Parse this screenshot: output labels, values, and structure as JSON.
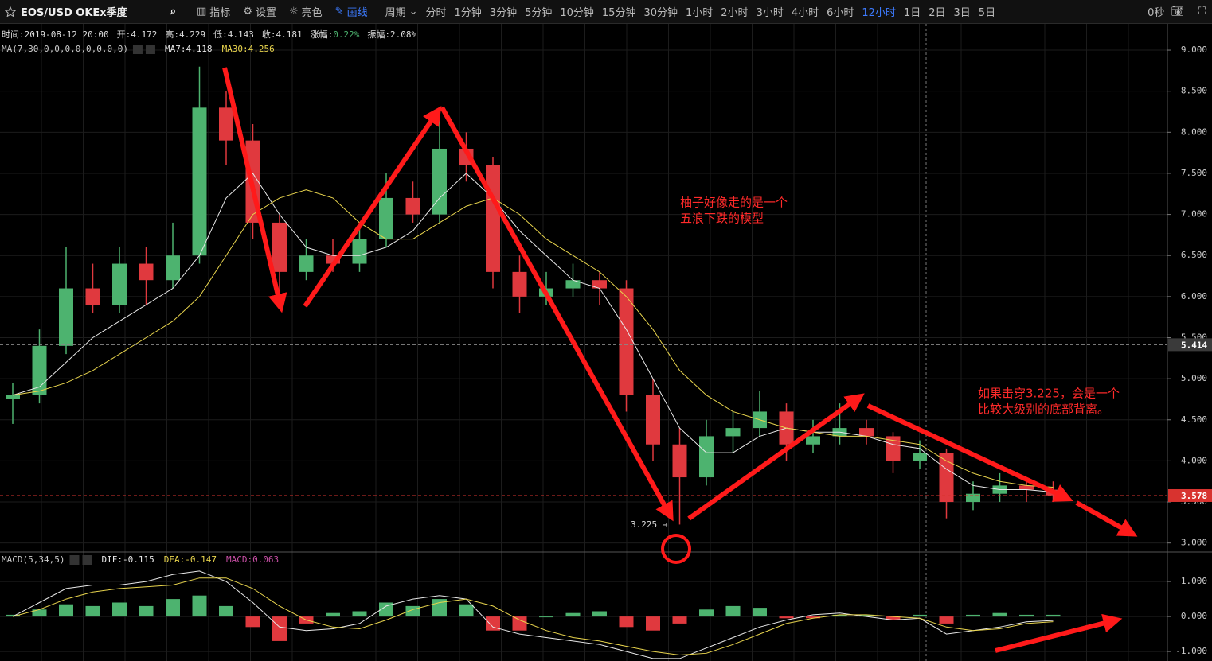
{
  "toolbar": {
    "symbol": "EOS/USD OKEx季度",
    "tools": [
      "指标",
      "设置",
      "亮色",
      "画线"
    ],
    "period": "周期",
    "intervals": [
      "分时",
      "1分钟",
      "3分钟",
      "5分钟",
      "10分钟",
      "15分钟",
      "30分钟",
      "1小时",
      "2小时",
      "3小时",
      "4小时",
      "6小时",
      "12小时",
      "1日",
      "2日",
      "3日",
      "5日"
    ],
    "timer": "0秒"
  },
  "chart_data": [
    {
      "type": "candlestick",
      "info": [
        "时间:2019-08-12 20:00",
        "开:4.172",
        "高:4.229",
        "低:4.143",
        "收:4.181"
      ],
      "change_label": "涨幅:",
      "change": "0.22%",
      "amplitude": "振幅:2.08%",
      "indicator": "MA(7,30,0,0,0,0,0,0,0,0)",
      "up_color": "#4db36f",
      "down_color": "#e0393e",
      "open": [
        4.75,
        4.8,
        5.4,
        6.1,
        5.9,
        6.4,
        6.2,
        6.5,
        8.3,
        7.9,
        6.9,
        6.3,
        6.5,
        6.4,
        6.7,
        7.2,
        7.0,
        7.8,
        7.6,
        6.3,
        6.0,
        6.1,
        6.2,
        6.1,
        4.8,
        4.2,
        3.8,
        4.3,
        4.4,
        4.6,
        4.2,
        4.3,
        4.4,
        4.3,
        4.0,
        4.1,
        3.5,
        3.6,
        3.7,
        3.65
      ],
      "high": [
        4.95,
        5.6,
        6.6,
        6.4,
        6.6,
        6.6,
        6.9,
        8.8,
        8.5,
        8.1,
        7.0,
        6.7,
        6.7,
        6.9,
        7.5,
        7.4,
        8.3,
        8.0,
        7.7,
        6.5,
        6.3,
        6.4,
        6.3,
        6.2,
        5.0,
        4.4,
        4.5,
        4.6,
        4.85,
        4.7,
        4.5,
        4.7,
        4.5,
        4.35,
        4.25,
        4.15,
        3.75,
        3.85,
        3.8,
        3.75
      ],
      "low": [
        4.45,
        4.7,
        5.3,
        5.8,
        5.8,
        5.9,
        6.1,
        6.4,
        7.6,
        6.7,
        6.0,
        6.2,
        6.3,
        6.3,
        6.6,
        6.9,
        6.9,
        7.4,
        6.1,
        5.8,
        5.9,
        6.0,
        5.9,
        4.6,
        4.0,
        3.225,
        3.7,
        4.1,
        4.3,
        4.0,
        4.1,
        4.2,
        4.2,
        3.85,
        3.9,
        3.3,
        3.4,
        3.5,
        3.5,
        3.5
      ],
      "close": [
        4.8,
        5.4,
        6.1,
        5.9,
        6.4,
        6.2,
        6.5,
        8.3,
        7.9,
        6.9,
        6.3,
        6.5,
        6.4,
        6.7,
        7.2,
        7.0,
        7.8,
        7.6,
        6.3,
        6.0,
        6.1,
        6.2,
        6.1,
        4.8,
        4.2,
        3.8,
        4.3,
        4.4,
        4.6,
        4.2,
        4.3,
        4.4,
        4.3,
        4.0,
        4.1,
        3.5,
        3.6,
        3.7,
        3.65,
        3.58
      ],
      "series": [
        {
          "name": "MA7:4.118",
          "color": "#e8e8e8",
          "values": [
            4.8,
            4.9,
            5.2,
            5.5,
            5.7,
            5.9,
            6.1,
            6.5,
            7.2,
            7.5,
            7.0,
            6.6,
            6.5,
            6.5,
            6.6,
            6.8,
            7.2,
            7.5,
            7.2,
            6.8,
            6.5,
            6.2,
            6.1,
            5.6,
            5.0,
            4.4,
            4.1,
            4.1,
            4.3,
            4.4,
            4.35,
            4.35,
            4.3,
            4.2,
            4.15,
            3.9,
            3.7,
            3.65,
            3.65,
            3.62
          ]
        },
        {
          "name": "MA30:4.256",
          "color": "#e8d44d",
          "values": [
            4.8,
            4.85,
            4.95,
            5.1,
            5.3,
            5.5,
            5.7,
            6.0,
            6.5,
            7.0,
            7.2,
            7.3,
            7.2,
            6.9,
            6.7,
            6.7,
            6.9,
            7.1,
            7.2,
            7.0,
            6.7,
            6.5,
            6.3,
            6.0,
            5.6,
            5.1,
            4.8,
            4.6,
            4.5,
            4.4,
            4.35,
            4.3,
            4.3,
            4.25,
            4.2,
            4.0,
            3.85,
            3.75,
            3.7,
            3.68
          ]
        }
      ],
      "ylim": [
        2.9,
        9.32
      ],
      "yticks": [
        {
          "value": 3,
          "label": "3.000"
        },
        {
          "value": 3.5,
          "label": "3.500"
        },
        {
          "value": 4,
          "label": "4.000"
        },
        {
          "value": 4.5,
          "label": "4.500"
        },
        {
          "value": 5,
          "label": "5.000"
        },
        {
          "value": 5.5,
          "label": "5.500"
        },
        {
          "value": 6,
          "label": "6.000"
        },
        {
          "value": 6.5,
          "label": "6.500"
        },
        {
          "value": 7,
          "label": "7.000"
        },
        {
          "value": 7.5,
          "label": "7.500"
        },
        {
          "value": 8,
          "label": "8.000"
        },
        {
          "value": 8.5,
          "label": "8.500"
        },
        {
          "value": 9,
          "label": "9.000"
        }
      ],
      "price_lines": [
        {
          "value": 5.414,
          "label": "5.414",
          "color": "#3a3a3a"
        },
        {
          "value": 3.578,
          "label": "3.578",
          "color": "#d8332f"
        }
      ],
      "low_label": "3.225 →",
      "annotations": [
        "柚子好像走的是一个",
        "五浪下跌的模型",
        "如果击穿3.225，会是一个",
        "比较大级别的底部背离。"
      ]
    },
    {
      "type": "macd",
      "indicator": "MACD(5,34,5)",
      "up_color": "#4db36f",
      "down_color": "#e0393e",
      "values": [
        0.05,
        0.2,
        0.35,
        0.3,
        0.4,
        0.3,
        0.5,
        0.6,
        0.3,
        -0.3,
        -0.7,
        -0.2,
        0.1,
        0.15,
        0.4,
        0.3,
        0.5,
        0.35,
        -0.4,
        -0.4,
        0.0,
        0.1,
        0.15,
        -0.3,
        -0.4,
        -0.2,
        0.2,
        0.3,
        0.25,
        -0.05,
        -0.05,
        0.05,
        0.05,
        -0.1,
        0.05,
        -0.2,
        0.05,
        0.1,
        0.05,
        0.05
      ],
      "value_name": "MACD:0.063",
      "value_name_color": "#c84fa5",
      "series": [
        {
          "name": "DIF:-0.115",
          "color": "#e8e8e8",
          "values": [
            0.0,
            0.4,
            0.8,
            0.9,
            0.9,
            1.0,
            1.2,
            1.3,
            1.0,
            0.4,
            -0.3,
            -0.4,
            -0.35,
            -0.2,
            0.3,
            0.5,
            0.6,
            0.5,
            -0.3,
            -0.5,
            -0.6,
            -0.7,
            -0.8,
            -1.0,
            -1.2,
            -1.2,
            -0.9,
            -0.6,
            -0.3,
            -0.1,
            0.05,
            0.1,
            0.0,
            -0.1,
            -0.05,
            -0.5,
            -0.4,
            -0.3,
            -0.15,
            -0.115
          ]
        },
        {
          "name": "DEA:-0.147",
          "color": "#e8d44d",
          "values": [
            0.0,
            0.2,
            0.5,
            0.7,
            0.8,
            0.85,
            0.9,
            1.1,
            1.1,
            0.8,
            0.3,
            -0.1,
            -0.3,
            -0.35,
            -0.1,
            0.2,
            0.4,
            0.5,
            0.3,
            -0.1,
            -0.4,
            -0.6,
            -0.7,
            -0.85,
            -1.0,
            -1.1,
            -1.05,
            -0.8,
            -0.5,
            -0.2,
            -0.05,
            0.05,
            0.05,
            0.0,
            -0.05,
            -0.3,
            -0.4,
            -0.35,
            -0.2,
            -0.147
          ]
        }
      ],
      "ylim": [
        -1.27,
        1.82
      ],
      "yticks": [
        {
          "value": -1,
          "label": "-1.000"
        },
        {
          "value": 0,
          "label": "0.000"
        },
        {
          "value": 1,
          "label": "1.000"
        }
      ]
    }
  ]
}
